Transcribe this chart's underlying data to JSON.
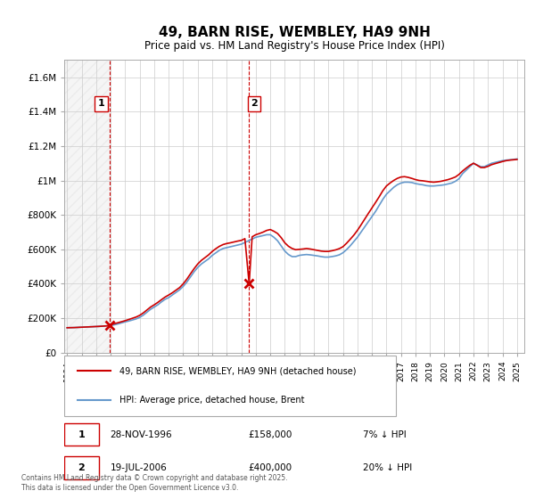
{
  "title": "49, BARN RISE, WEMBLEY, HA9 9NH",
  "subtitle": "Price paid vs. HM Land Registry's House Price Index (HPI)",
  "xlabel": "",
  "ylabel": "",
  "ylim": [
    0,
    1700000
  ],
  "yticks": [
    0,
    200000,
    400000,
    600000,
    800000,
    1000000,
    1200000,
    1400000,
    1600000
  ],
  "ytick_labels": [
    "£0",
    "£200K",
    "£400K",
    "£600K",
    "£800K",
    "£1M",
    "£1.2M",
    "£1.4M",
    "£1.6M"
  ],
  "legend_entry1": "49, BARN RISE, WEMBLEY, HA9 9NH (detached house)",
  "legend_entry2": "HPI: Average price, detached house, Brent",
  "sale1_date": "28-NOV-1996",
  "sale1_price": "£158,000",
  "sale1_note": "7% ↓ HPI",
  "sale2_date": "19-JUL-2006",
  "sale2_price": "£400,000",
  "sale2_note": "20% ↓ HPI",
  "footer": "Contains HM Land Registry data © Crown copyright and database right 2025.\nThis data is licensed under the Open Government Licence v3.0.",
  "line_color_red": "#cc0000",
  "line_color_blue": "#6699cc",
  "vline_color": "#cc0000",
  "marker_color_red": "#cc0000",
  "grid_color": "#cccccc",
  "background_color": "#ffffff",
  "sale_marker1_x": 1996.917,
  "sale_marker1_y": 158000,
  "sale_marker2_x": 2006.542,
  "sale_marker2_y": 400000,
  "hpi_years": [
    1994,
    1994.25,
    1994.5,
    1994.75,
    1995,
    1995.25,
    1995.5,
    1995.75,
    1996,
    1996.25,
    1996.5,
    1996.75,
    1997,
    1997.25,
    1997.5,
    1997.75,
    1998,
    1998.25,
    1998.5,
    1998.75,
    1999,
    1999.25,
    1999.5,
    1999.75,
    2000,
    2000.25,
    2000.5,
    2000.75,
    2001,
    2001.25,
    2001.5,
    2001.75,
    2002,
    2002.25,
    2002.5,
    2002.75,
    2003,
    2003.25,
    2003.5,
    2003.75,
    2004,
    2004.25,
    2004.5,
    2004.75,
    2005,
    2005.25,
    2005.5,
    2005.75,
    2006,
    2006.25,
    2006.5,
    2006.75,
    2007,
    2007.25,
    2007.5,
    2007.75,
    2008,
    2008.25,
    2008.5,
    2008.75,
    2009,
    2009.25,
    2009.5,
    2009.75,
    2010,
    2010.25,
    2010.5,
    2010.75,
    2011,
    2011.25,
    2011.5,
    2011.75,
    2012,
    2012.25,
    2012.5,
    2012.75,
    2013,
    2013.25,
    2013.5,
    2013.75,
    2014,
    2014.25,
    2014.5,
    2014.75,
    2015,
    2015.25,
    2015.5,
    2015.75,
    2016,
    2016.25,
    2016.5,
    2016.75,
    2017,
    2017.25,
    2017.5,
    2017.75,
    2018,
    2018.25,
    2018.5,
    2018.75,
    2019,
    2019.25,
    2019.5,
    2019.75,
    2020,
    2020.25,
    2020.5,
    2020.75,
    2021,
    2021.25,
    2021.5,
    2021.75,
    2022,
    2022.25,
    2022.5,
    2022.75,
    2023,
    2023.25,
    2023.5,
    2023.75,
    2024,
    2024.25,
    2024.5,
    2024.75,
    2025
  ],
  "hpi_values": [
    145000,
    145500,
    146000,
    147000,
    148000,
    149000,
    150000,
    151000,
    152000,
    153000,
    154500,
    156000,
    158000,
    162000,
    167000,
    173000,
    179000,
    184000,
    190000,
    196000,
    205000,
    218000,
    235000,
    252000,
    265000,
    278000,
    295000,
    310000,
    320000,
    335000,
    350000,
    365000,
    385000,
    410000,
    440000,
    470000,
    495000,
    515000,
    530000,
    545000,
    565000,
    580000,
    595000,
    605000,
    610000,
    615000,
    620000,
    625000,
    630000,
    640000,
    650000,
    660000,
    670000,
    675000,
    680000,
    685000,
    685000,
    670000,
    650000,
    620000,
    590000,
    570000,
    558000,
    558000,
    565000,
    568000,
    570000,
    568000,
    565000,
    562000,
    558000,
    555000,
    555000,
    558000,
    562000,
    568000,
    580000,
    598000,
    620000,
    645000,
    670000,
    700000,
    730000,
    760000,
    790000,
    820000,
    855000,
    890000,
    920000,
    940000,
    960000,
    975000,
    985000,
    990000,
    990000,
    988000,
    982000,
    978000,
    975000,
    970000,
    968000,
    968000,
    970000,
    972000,
    975000,
    980000,
    985000,
    995000,
    1010000,
    1040000,
    1060000,
    1080000,
    1100000,
    1090000,
    1080000,
    1080000,
    1090000,
    1100000,
    1105000,
    1110000,
    1115000,
    1118000,
    1120000,
    1122000,
    1125000
  ],
  "red_years": [
    1994,
    1994.25,
    1994.5,
    1994.75,
    1995,
    1995.25,
    1995.5,
    1995.75,
    1996,
    1996.25,
    1996.5,
    1996.75,
    1996.917,
    1997,
    1997.25,
    1997.5,
    1997.75,
    1998,
    1998.25,
    1998.5,
    1998.75,
    1999,
    1999.25,
    1999.5,
    1999.75,
    2000,
    2000.25,
    2000.5,
    2000.75,
    2001,
    2001.25,
    2001.5,
    2001.75,
    2002,
    2002.25,
    2002.5,
    2002.75,
    2003,
    2003.25,
    2003.5,
    2003.75,
    2004,
    2004.25,
    2004.5,
    2004.75,
    2005,
    2005.25,
    2005.5,
    2005.75,
    2006,
    2006.25,
    2006.542,
    2006.75,
    2007,
    2007.25,
    2007.5,
    2007.75,
    2008,
    2008.25,
    2008.5,
    2008.75,
    2009,
    2009.25,
    2009.5,
    2009.75,
    2010,
    2010.25,
    2010.5,
    2010.75,
    2011,
    2011.25,
    2011.5,
    2011.75,
    2012,
    2012.25,
    2012.5,
    2012.75,
    2013,
    2013.25,
    2013.5,
    2013.75,
    2014,
    2014.25,
    2014.5,
    2014.75,
    2015,
    2015.25,
    2015.5,
    2015.75,
    2016,
    2016.25,
    2016.5,
    2016.75,
    2017,
    2017.25,
    2017.5,
    2017.75,
    2018,
    2018.25,
    2018.5,
    2018.75,
    2019,
    2019.25,
    2019.5,
    2019.75,
    2020,
    2020.25,
    2020.5,
    2020.75,
    2021,
    2021.25,
    2021.5,
    2021.75,
    2022,
    2022.25,
    2022.5,
    2022.75,
    2023,
    2023.25,
    2023.5,
    2023.75,
    2024,
    2024.25,
    2024.5,
    2024.75,
    2025
  ],
  "red_values": [
    145000,
    145500,
    146000,
    147000,
    148000,
    149000,
    150000,
    151000,
    152000,
    153000,
    154500,
    156000,
    158000,
    163000,
    168500,
    174000,
    180000,
    186000,
    193000,
    200000,
    207000,
    217000,
    231000,
    248000,
    265000,
    278000,
    292000,
    308000,
    323000,
    335000,
    348000,
    363000,
    378000,
    400000,
    427000,
    458000,
    488000,
    515000,
    536000,
    552000,
    568000,
    588000,
    604000,
    618000,
    628000,
    634000,
    638000,
    643000,
    648000,
    652000,
    662000,
    400000,
    673000,
    685000,
    692000,
    700000,
    710000,
    715000,
    705000,
    692000,
    668000,
    638000,
    618000,
    605000,
    598000,
    600000,
    602000,
    605000,
    602000,
    598000,
    594000,
    590000,
    588000,
    588000,
    592000,
    597000,
    604000,
    615000,
    635000,
    658000,
    682000,
    710000,
    742000,
    775000,
    808000,
    840000,
    872000,
    905000,
    940000,
    968000,
    985000,
    1000000,
    1012000,
    1020000,
    1022000,
    1018000,
    1012000,
    1005000,
    1000000,
    998000,
    995000,
    992000,
    990000,
    992000,
    995000,
    1000000,
    1005000,
    1012000,
    1020000,
    1035000,
    1055000,
    1072000,
    1088000,
    1100000,
    1088000,
    1075000,
    1075000,
    1082000,
    1092000,
    1098000,
    1104000,
    1110000,
    1115000,
    1118000,
    1120000,
    1122000
  ],
  "xtick_years": [
    1994,
    1995,
    1996,
    1997,
    1998,
    1999,
    2000,
    2001,
    2002,
    2003,
    2004,
    2005,
    2006,
    2007,
    2008,
    2009,
    2010,
    2011,
    2012,
    2013,
    2014,
    2015,
    2016,
    2017,
    2018,
    2019,
    2020,
    2021,
    2022,
    2023,
    2024,
    2025
  ],
  "xlim": [
    1993.8,
    2025.5
  ]
}
